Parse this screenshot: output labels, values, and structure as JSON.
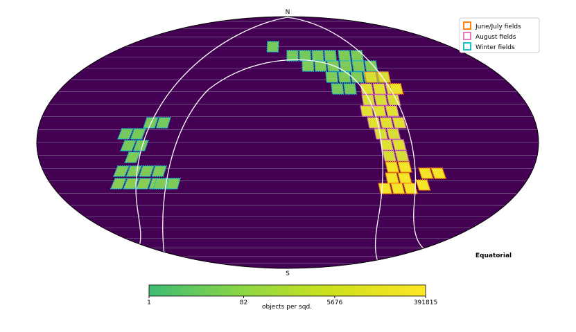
{
  "map": {
    "pole_labels": {
      "north": "N",
      "south": "S"
    },
    "frame_label": "Equatorial",
    "legend": [
      {
        "name": "June/July fields",
        "color": "#ff7f0e"
      },
      {
        "name": "August fields",
        "color": "#e377c2"
      },
      {
        "name": "Winter fields",
        "color": "#17becf"
      }
    ],
    "colorbar": {
      "label": "objects per sqd.",
      "lim": [
        1,
        391815
      ],
      "ticks": [
        1,
        82,
        5676,
        391815
      ],
      "log": true
    }
  }
}
